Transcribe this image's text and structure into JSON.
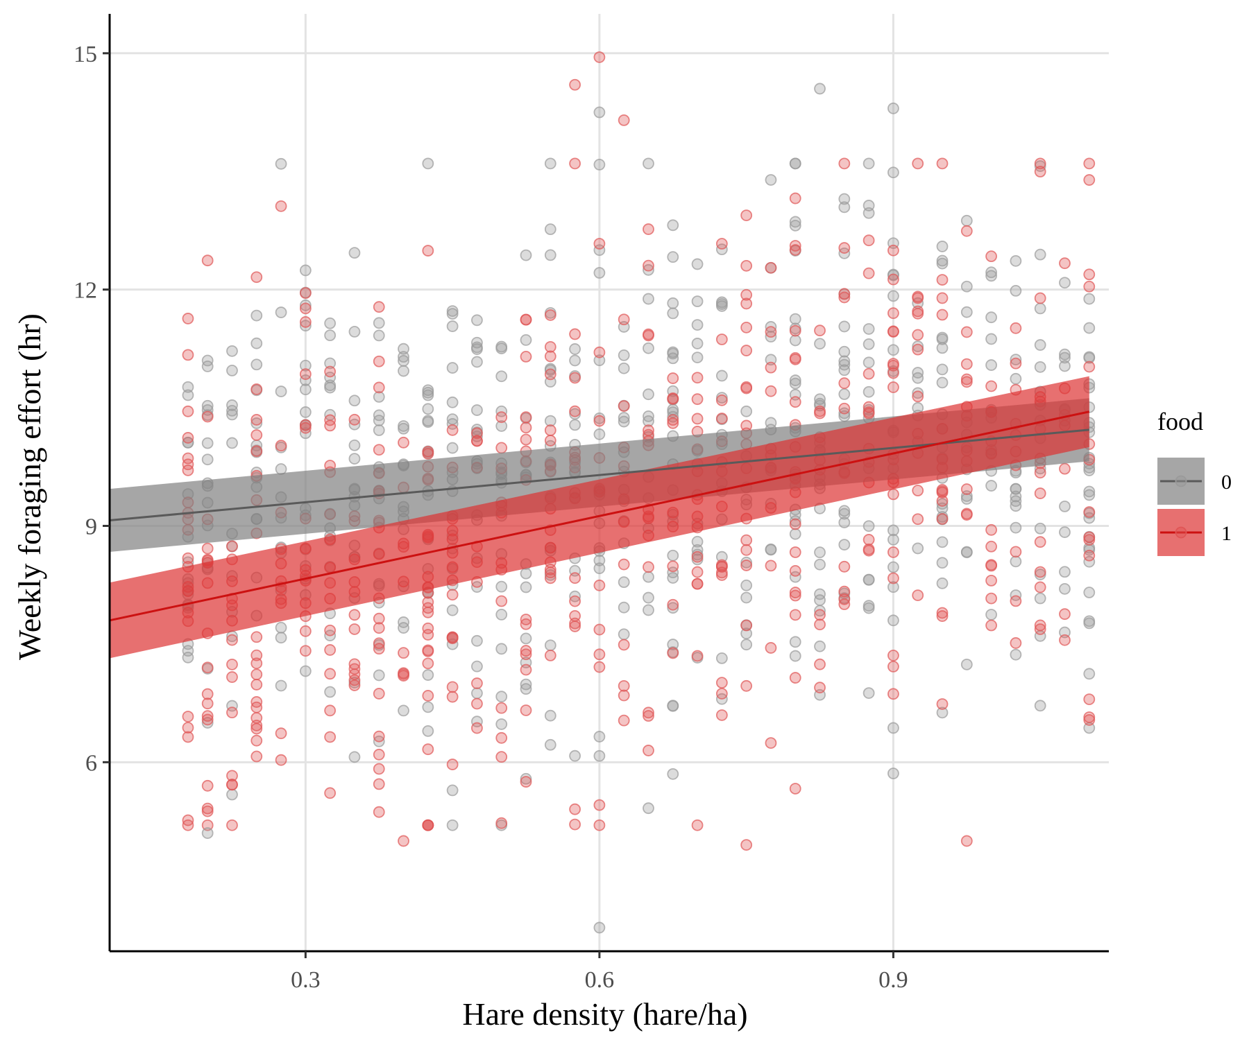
{
  "chart_data": {
    "type": "scatter",
    "xlabel": "Hare density (hare/ha)",
    "ylabel": "Weekly foraging effort (hr)",
    "xlim": [
      0.1,
      1.12
    ],
    "ylim": [
      3.6,
      15.5
    ],
    "x_ticks": [
      0.3,
      0.6,
      0.9
    ],
    "y_ticks": [
      6,
      9,
      12,
      15
    ],
    "x_tick_labels": [
      "0.3",
      "0.6",
      "0.9"
    ],
    "y_tick_labels": [
      "6",
      "9",
      "12",
      "15"
    ],
    "grid": true,
    "legend_position": "right",
    "legend_title": "food",
    "density_levels": [
      0.18,
      0.2,
      0.225,
      0.25,
      0.275,
      0.3,
      0.325,
      0.35,
      0.375,
      0.4,
      0.425,
      0.45,
      0.475,
      0.5,
      0.525,
      0.55,
      0.575,
      0.6,
      0.625,
      0.65,
      0.675,
      0.7,
      0.725,
      0.75,
      0.775,
      0.8,
      0.825,
      0.85,
      0.875,
      0.9,
      0.925,
      0.95,
      0.975,
      1.0,
      1.025,
      1.05,
      1.075,
      1.1
    ],
    "series": [
      {
        "name": "0",
        "color": "#5a5a5a",
        "fill": "#808080",
        "point_color": "#9a9a9a",
        "fit": {
          "x": [
            0.1,
            1.1
          ],
          "y": [
            9.07,
            10.22
          ]
        },
        "ci_lower": [
          8.67,
          9.82
        ],
        "ci_upper": [
          9.47,
          10.62
        ],
        "n_points": 620,
        "y_mean": 9.55,
        "y_sd": 1.7
      },
      {
        "name": "1",
        "color": "#cc1111",
        "fill": "#dd3333",
        "point_color": "#e05555",
        "fit": {
          "x": [
            0.1,
            1.1
          ],
          "y": [
            7.8,
            10.45
          ]
        },
        "ci_lower": [
          7.32,
          10.0
        ],
        "ci_upper": [
          8.28,
          10.9
        ],
        "n_points": 560,
        "y_mean": 9.1,
        "y_sd": 1.7
      }
    ],
    "outliers": [
      {
        "series": "0",
        "x": 0.6,
        "y": 3.9
      },
      {
        "series": "1",
        "x": 0.6,
        "y": 14.95
      },
      {
        "series": "1",
        "x": 0.575,
        "y": 14.6
      },
      {
        "series": "0",
        "x": 0.825,
        "y": 14.55
      },
      {
        "series": "0",
        "x": 0.9,
        "y": 14.3
      },
      {
        "series": "0",
        "x": 0.6,
        "y": 14.25
      },
      {
        "series": "1",
        "x": 0.625,
        "y": 14.15
      },
      {
        "series": "0",
        "x": 0.2,
        "y": 5.1
      },
      {
        "series": "1",
        "x": 0.4,
        "y": 5.0
      },
      {
        "series": "1",
        "x": 0.975,
        "y": 5.0
      },
      {
        "series": "1",
        "x": 0.75,
        "y": 4.95
      }
    ]
  }
}
